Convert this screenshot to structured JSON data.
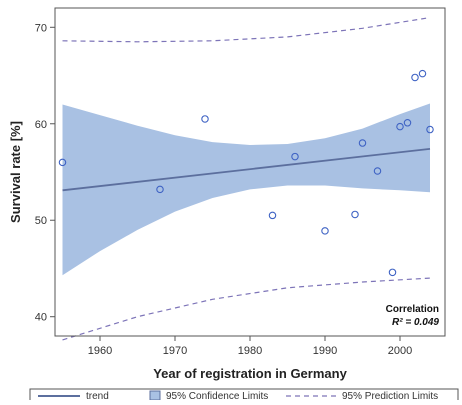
{
  "chart_data": {
    "type": "scatter",
    "xlabel": "Year of registration in Germany",
    "ylabel": "Survival rate [%]",
    "xlim": [
      1954,
      2006
    ],
    "ylim": [
      38,
      72
    ],
    "xticks": [
      1960,
      1970,
      1980,
      1990,
      2000
    ],
    "yticks": [
      40,
      50,
      60,
      70
    ],
    "grid": false,
    "points": [
      {
        "x": 1955,
        "y": 56.0
      },
      {
        "x": 1968,
        "y": 53.2
      },
      {
        "x": 1974,
        "y": 60.5
      },
      {
        "x": 1983,
        "y": 50.5
      },
      {
        "x": 1986,
        "y": 56.6
      },
      {
        "x": 1990,
        "y": 48.9
      },
      {
        "x": 1994,
        "y": 50.6
      },
      {
        "x": 1995,
        "y": 58.0
      },
      {
        "x": 1997,
        "y": 55.1
      },
      {
        "x": 1999,
        "y": 44.6
      },
      {
        "x": 2000,
        "y": 59.7
      },
      {
        "x": 2001,
        "y": 60.1
      },
      {
        "x": 2002,
        "y": 64.8
      },
      {
        "x": 2003,
        "y": 65.2
      },
      {
        "x": 2004,
        "y": 59.4
      }
    ],
    "trend": {
      "x": [
        1955,
        2004
      ],
      "y": [
        53.1,
        57.4
      ]
    },
    "confidence_band": {
      "x": [
        1955,
        1960,
        1965,
        1970,
        1975,
        1980,
        1985,
        1990,
        1995,
        2000,
        2004
      ],
      "lower": [
        44.3,
        46.8,
        49.0,
        50.9,
        52.3,
        53.2,
        53.6,
        53.6,
        53.3,
        53.1,
        52.9
      ],
      "upper": [
        62.0,
        60.9,
        59.8,
        58.8,
        58.1,
        57.8,
        57.9,
        58.5,
        59.5,
        61.0,
        62.1
      ]
    },
    "prediction_limits": {
      "x": [
        1955,
        1965,
        1975,
        1985,
        1995,
        2004
      ],
      "lower": [
        37.6,
        40.0,
        41.8,
        43.0,
        43.6,
        44.0
      ],
      "upper": [
        68.6,
        68.5,
        68.6,
        69.0,
        69.9,
        71.0
      ]
    },
    "annotation": {
      "title": "Correlation",
      "label": "R² = 0.049"
    },
    "legend": {
      "position": "bottom",
      "entries": [
        "trend",
        "95% Confidence Limits",
        "95% Prediction Limits"
      ]
    },
    "colors": {
      "band": "#a9c1e3",
      "line": "#5c6f9e",
      "marker": "#3f63c4",
      "prediction": "#7d74b8",
      "frame": "#555555"
    }
  }
}
